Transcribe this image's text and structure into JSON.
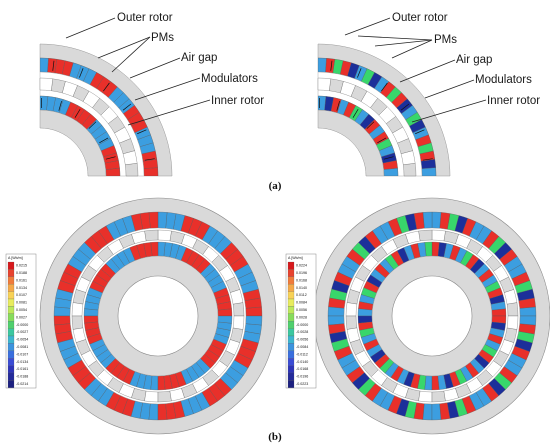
{
  "captions": {
    "a": "(a)",
    "b": "(b)"
  },
  "left_quarter": {
    "labels": [
      "Outer rotor",
      "PMs",
      "Air gap",
      "Modulators",
      "Inner rotor"
    ]
  },
  "right_quarter": {
    "labels": [
      "Outer rotor",
      "PMs",
      "Air gap",
      "Modulators",
      "Inner rotor"
    ]
  },
  "left_legend": {
    "title": "A [Wb/m]",
    "ticks": [
      "0.0215",
      "0.0188",
      "0.0161",
      "0.0134",
      "0.0107",
      "0.0081",
      "0.0054",
      "0.0027",
      "-0.0000",
      "-0.0027",
      "-0.0054",
      "-0.0081",
      "-0.0107",
      "-0.0134",
      "-0.0161",
      "-0.0188",
      "-0.0214"
    ]
  },
  "right_legend": {
    "title": "A [Wb/m]",
    "ticks": [
      "0.0224",
      "0.0196",
      "0.0168",
      "0.0140",
      "0.0112",
      "0.0084",
      "0.0056",
      "0.0028",
      "-0.0000",
      "-0.0028",
      "-0.0056",
      "-0.0084",
      "-0.0112",
      "-0.0140",
      "-0.0168",
      "-0.0196",
      "-0.0223"
    ]
  },
  "colors": {
    "pm_red": "#e8302a",
    "pm_blue": "#3c9ee0",
    "iron": "#d9d9d9",
    "green": "#38d66b",
    "navy": "#1c2f9a"
  }
}
